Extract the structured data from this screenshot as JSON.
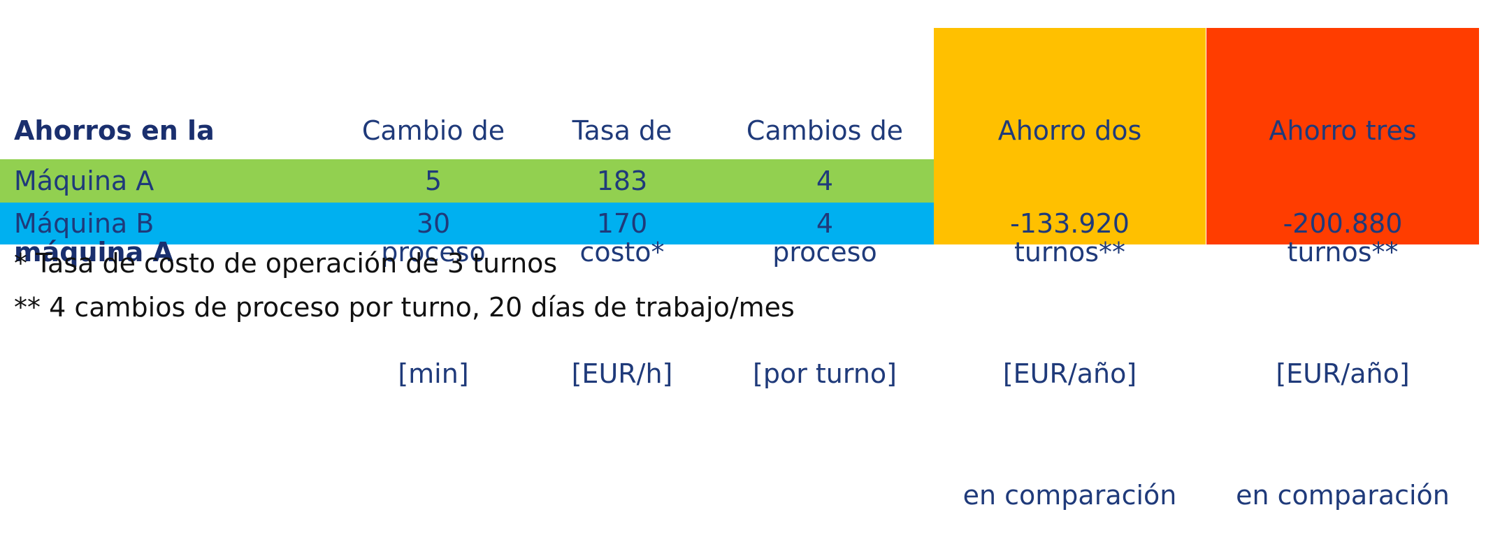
{
  "header": {
    "title": [
      "Ahorros en la",
      "máquina A"
    ],
    "col1": [
      "Cambio de",
      "proceso",
      "[min]"
    ],
    "col2": [
      "Tasa de",
      "costo*",
      "[EUR/h]"
    ],
    "col3": [
      "Cambios de",
      "proceso",
      "[por turno]"
    ],
    "col4": [
      "Ahorro dos",
      "turnos**",
      "[EUR/año]",
      "en comparación"
    ],
    "col5": [
      "Ahorro tres",
      "turnos**",
      "[EUR/año]",
      "en comparación"
    ]
  },
  "rows": [
    {
      "name": "Máquina A",
      "cambio": "5",
      "tasa": "183",
      "cambios": "4"
    },
    {
      "name": "Máquina B",
      "cambio": "30",
      "tasa": "170",
      "cambios": "4"
    }
  ],
  "savings": {
    "dos_turnos": "-133.920",
    "tres_turnos": "-200.880"
  },
  "footnotes": [
    "* Tasa de costo de operación de 3 turnos",
    "** 4 cambios de proceso por turno, 20 días de trabajo/mes"
  ],
  "colors": {
    "green": "#92d050",
    "blue": "#00b0f0",
    "orange": "#ffc000",
    "red": "#ff3d00",
    "text": "#1f3a7a"
  }
}
